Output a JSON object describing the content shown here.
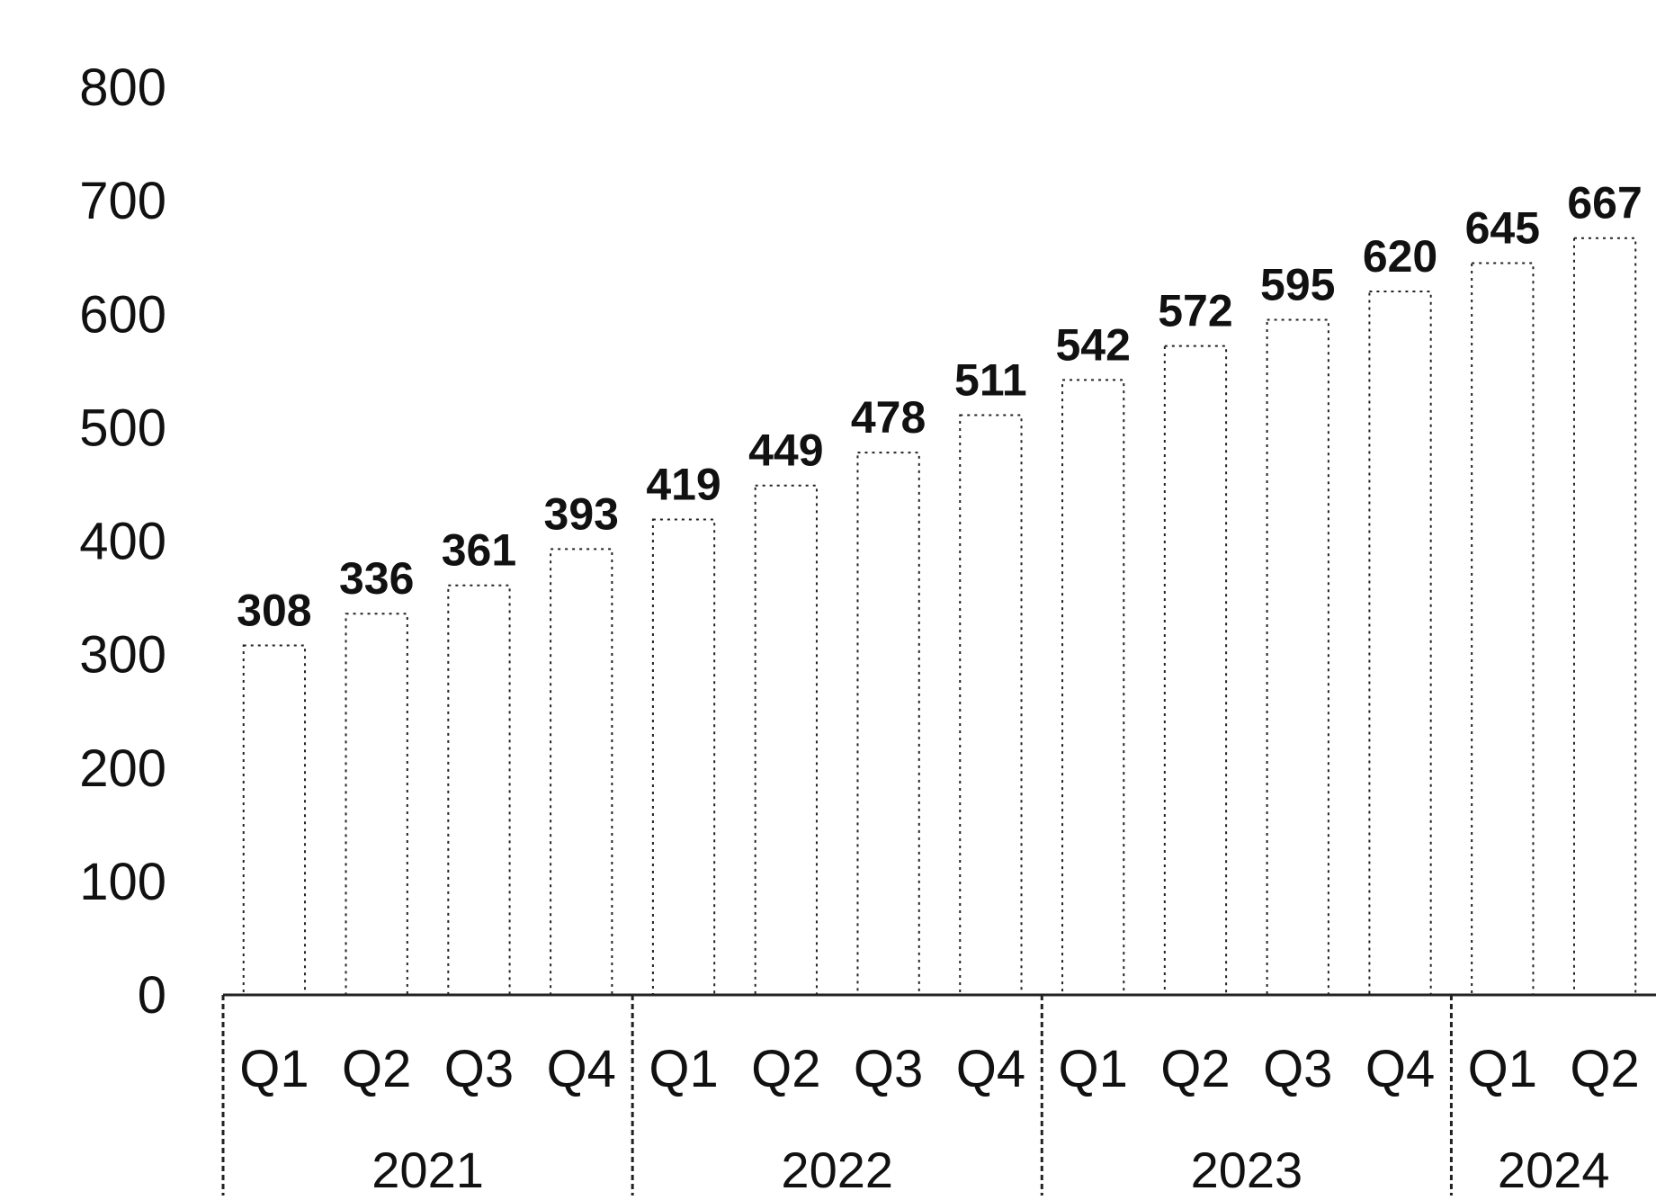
{
  "chart_data": {
    "type": "bar",
    "title": "",
    "xlabel": "",
    "ylabel": "",
    "ylim": [
      0,
      800
    ],
    "yticks": [
      0,
      100,
      200,
      300,
      400,
      500,
      600,
      700,
      800
    ],
    "grid": false,
    "legend": "none",
    "categories": [
      "Q1",
      "Q2",
      "Q3",
      "Q4",
      "Q1",
      "Q2",
      "Q3",
      "Q4",
      "Q1",
      "Q2",
      "Q3",
      "Q4",
      "Q1",
      "Q2"
    ],
    "groups": [
      {
        "label": "2021",
        "count": 4
      },
      {
        "label": "2022",
        "count": 4
      },
      {
        "label": "2023",
        "count": 4
      },
      {
        "label": "2024",
        "count": 2
      }
    ],
    "series": [
      {
        "values": [
          308,
          336,
          361,
          393,
          419,
          449,
          478,
          511,
          542,
          572,
          595,
          620,
          645,
          667
        ]
      }
    ],
    "colors": {
      "bar": "#ffffff",
      "bar_stroke": "#222222",
      "axis": "#222222"
    }
  }
}
